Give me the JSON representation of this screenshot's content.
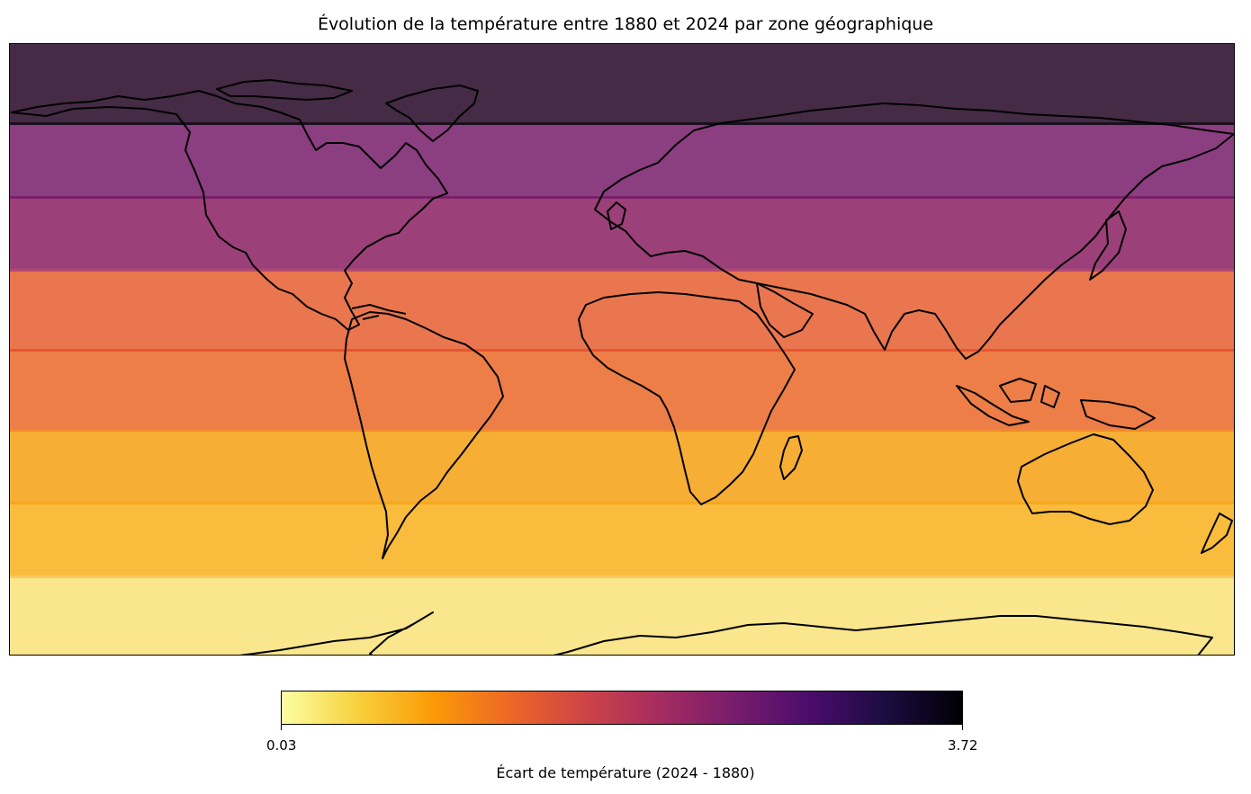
{
  "title": "Évolution de la température entre 1880 et 2024 par zone géographique",
  "map": {
    "projection": "plate-carree",
    "zones": [
      {
        "lat_range": [
          66.5,
          90
        ],
        "color": "#452b45"
      },
      {
        "lat_range": [
          45,
          66.5
        ],
        "color": "#8b3e80"
      },
      {
        "lat_range": [
          23.5,
          45
        ],
        "color": "#9c4079"
      },
      {
        "lat_range": [
          0,
          23.5
        ],
        "color": "#ea764f"
      },
      {
        "lat_range": [
          -23.5,
          0
        ],
        "color": "#ed7e47"
      },
      {
        "lat_range": [
          -45,
          -23.5
        ],
        "color": "#f6ae35"
      },
      {
        "lat_range": [
          -66.5,
          -45
        ],
        "color": "#f9bc3c"
      },
      {
        "lat_range": [
          -90,
          -66.5
        ],
        "color": "#fae68c"
      }
    ],
    "zone_separator_colors": [
      "#1a0f1f",
      "#7a1f6a",
      "#b24a70",
      "#e8552f",
      "#f08a2a",
      "#f5a81e",
      "#f8c860"
    ]
  },
  "colorbar": {
    "colormap": "inferno_r",
    "min_label": "0.03",
    "max_label": "3.72",
    "label": "Écart de température (2024 - 1880)",
    "stops": [
      "#fcffa4",
      "#f7d13d",
      "#fb9b06",
      "#ed6925",
      "#cf4446",
      "#a52c60",
      "#781c6d",
      "#4a0c6b",
      "#1b0c41",
      "#000004"
    ]
  }
}
